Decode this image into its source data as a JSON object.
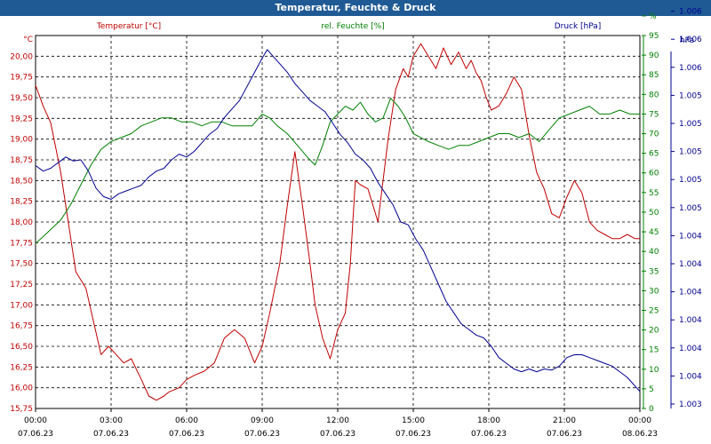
{
  "window": {
    "title": "Temperatur, Feuchte & Druck"
  },
  "chart_data": {
    "type": "line",
    "title": "Temperatur, Feuchte & Druck",
    "grid": true,
    "x_ticks": [
      {
        "time": "00:00",
        "date": "07.06.23"
      },
      {
        "time": "03:00",
        "date": "07.06.23"
      },
      {
        "time": "06:00",
        "date": "07.06.23"
      },
      {
        "time": "09:00",
        "date": "07.06.23"
      },
      {
        "time": "12:00",
        "date": "07.06.23"
      },
      {
        "time": "15:00",
        "date": "07.06.23"
      },
      {
        "time": "18:00",
        "date": "07.06.23"
      },
      {
        "time": "21:00",
        "date": "07.06.23"
      },
      {
        "time": "00:00",
        "date": "08.06.23"
      }
    ],
    "axes": {
      "temperature": {
        "unit": "°C",
        "label": "Temperatur [°C]",
        "color": "#c00000",
        "range": [
          15.75,
          20.25
        ],
        "ticks": [
          "15,75",
          "16,00",
          "16,25",
          "16,50",
          "16,75",
          "17,00",
          "17,25",
          "17,50",
          "17,75",
          "18,00",
          "18,25",
          "18,50",
          "18,75",
          "19,00",
          "19,25",
          "19,50",
          "19,75",
          "20,00"
        ]
      },
      "humidity": {
        "unit": "%",
        "label": "rel. Feuchte [%]",
        "color": "#008000",
        "range": [
          0,
          95
        ],
        "ticks": [
          "0",
          "5",
          "10",
          "15",
          "20",
          "25",
          "30",
          "35",
          "40",
          "45",
          "50",
          "55",
          "60",
          "65",
          "70",
          "75",
          "80",
          "85",
          "90",
          "95",
          "%"
        ]
      },
      "pressure": {
        "unit": "hPa",
        "label": "Druck [hPa]",
        "color": "#000090",
        "ticks": [
          "1.003",
          "1.004",
          "1.004",
          "1.004",
          "1.004",
          "1.004",
          "1.004",
          "1.005",
          "1.005",
          "1.005",
          "1.005",
          "1.005",
          "1.006",
          "1.006",
          "1.006"
        ]
      }
    },
    "series": [
      {
        "name": "Temperatur [°C]",
        "axis": "temperature",
        "color": "#c00000",
        "x": [
          0,
          0.3,
          0.6,
          1.0,
          1.3,
          1.6,
          2.0,
          2.3,
          2.6,
          2.9,
          3.2,
          3.5,
          3.8,
          4.2,
          4.5,
          4.8,
          5.1,
          5.3,
          5.7,
          6.0,
          6.3,
          6.7,
          7.1,
          7.5,
          7.9,
          8.3,
          8.7,
          9.0,
          9.3,
          9.7,
          10.0,
          10.3,
          10.6,
          10.9,
          11.1,
          11.4,
          11.7,
          12.0,
          12.3,
          12.5,
          12.7,
          12.9,
          13.2,
          13.4,
          13.6,
          14.0,
          14.3,
          14.6,
          14.8,
          15.0,
          15.3,
          15.6,
          15.9,
          16.2,
          16.5,
          16.8,
          17.1,
          17.3,
          17.5,
          17.7,
          17.9,
          18.1,
          18.4,
          18.7,
          19.0,
          19.3,
          19.6,
          19.9,
          20.2,
          20.5,
          20.8,
          21.1,
          21.4,
          21.7,
          22.0,
          22.3,
          22.6,
          22.9,
          23.2,
          23.5,
          23.8,
          24.0
        ],
        "values": [
          19.65,
          19.4,
          19.2,
          18.6,
          18.0,
          17.4,
          17.2,
          16.8,
          16.4,
          16.5,
          16.4,
          16.3,
          16.35,
          16.1,
          15.9,
          15.85,
          15.9,
          15.95,
          16.0,
          16.1,
          16.15,
          16.2,
          16.3,
          16.6,
          16.7,
          16.6,
          16.3,
          16.5,
          16.9,
          17.5,
          18.2,
          18.85,
          18.2,
          17.5,
          17.0,
          16.6,
          16.35,
          16.7,
          16.9,
          17.5,
          18.5,
          18.45,
          18.4,
          18.2,
          18.0,
          19.0,
          19.6,
          19.85,
          19.75,
          20.0,
          20.15,
          20.0,
          19.85,
          20.1,
          19.9,
          20.05,
          19.85,
          19.95,
          19.8,
          19.7,
          19.5,
          19.35,
          19.4,
          19.55,
          19.75,
          19.6,
          19.05,
          18.6,
          18.4,
          18.1,
          18.05,
          18.3,
          18.5,
          18.35,
          18.0,
          17.9,
          17.85,
          17.8,
          17.8,
          17.85,
          17.8,
          17.8
        ]
      },
      {
        "name": "rel. Feuchte [%]",
        "axis": "humidity",
        "color": "#008000",
        "x": [
          0,
          0.5,
          1.0,
          1.4,
          1.8,
          2.2,
          2.6,
          3.0,
          3.4,
          3.8,
          4.2,
          4.6,
          5.0,
          5.4,
          5.8,
          6.2,
          6.6,
          7.0,
          7.4,
          7.8,
          8.2,
          8.6,
          9.0,
          9.3,
          9.6,
          10.0,
          10.4,
          10.8,
          11.1,
          11.4,
          11.7,
          12.0,
          12.3,
          12.6,
          12.9,
          13.2,
          13.5,
          13.8,
          14.1,
          14.4,
          14.7,
          15.0,
          15.3,
          15.6,
          16.0,
          16.4,
          16.8,
          17.2,
          17.6,
          18.0,
          18.4,
          18.8,
          19.2,
          19.6,
          20.0,
          20.4,
          20.8,
          21.2,
          21.6,
          22.0,
          22.4,
          22.8,
          23.2,
          23.6,
          24.0
        ],
        "values": [
          42,
          45,
          48,
          52,
          57,
          62,
          66,
          68,
          69,
          70,
          72,
          73,
          74,
          74,
          73,
          73,
          72,
          73,
          73,
          72,
          72,
          72,
          75,
          74,
          72,
          70,
          67,
          64,
          62,
          67,
          73,
          75,
          77,
          76,
          78,
          75,
          73,
          74,
          79,
          77,
          74,
          70,
          69,
          68,
          67,
          66,
          67,
          67,
          68,
          69,
          70,
          70,
          69,
          70,
          68,
          71,
          74,
          75,
          76,
          77,
          75,
          75,
          76,
          75,
          75
        ]
      },
      {
        "name": "Druck [hPa]",
        "axis": "pressure",
        "color": "#000090",
        "x": [
          0,
          0.3,
          0.6,
          0.9,
          1.2,
          1.5,
          1.8,
          2.1,
          2.4,
          2.7,
          3.0,
          3.3,
          3.6,
          3.9,
          4.2,
          4.5,
          4.8,
          5.1,
          5.4,
          5.7,
          6.0,
          6.3,
          6.6,
          6.9,
          7.2,
          7.5,
          7.8,
          8.1,
          8.4,
          8.7,
          9.0,
          9.2,
          9.4,
          9.7,
          10.0,
          10.3,
          10.6,
          10.9,
          11.2,
          11.5,
          11.8,
          12.1,
          12.4,
          12.7,
          13.0,
          13.3,
          13.6,
          13.9,
          14.2,
          14.5,
          14.8,
          15.1,
          15.4,
          15.7,
          16.0,
          16.3,
          16.6,
          16.9,
          17.2,
          17.5,
          17.8,
          18.1,
          18.4,
          18.7,
          19.0,
          19.3,
          19.6,
          19.9,
          20.2,
          20.5,
          20.8,
          21.1,
          21.4,
          21.7,
          22.0,
          22.3,
          22.6,
          22.9,
          23.2,
          23.5,
          23.8,
          24.0
        ],
        "values": [
          1004.9,
          1004.8,
          1004.85,
          1004.95,
          1005.05,
          1004.98,
          1005.0,
          1004.8,
          1004.5,
          1004.35,
          1004.3,
          1004.4,
          1004.45,
          1004.5,
          1004.55,
          1004.7,
          1004.8,
          1004.85,
          1005.0,
          1005.1,
          1005.05,
          1005.15,
          1005.3,
          1005.45,
          1005.55,
          1005.75,
          1005.9,
          1006.05,
          1006.3,
          1006.55,
          1006.8,
          1006.95,
          1006.85,
          1006.7,
          1006.55,
          1006.35,
          1006.2,
          1006.05,
          1005.95,
          1005.85,
          1005.65,
          1005.45,
          1005.3,
          1005.1,
          1005.0,
          1004.85,
          1004.6,
          1004.4,
          1004.2,
          1003.9,
          1003.85,
          1003.6,
          1003.4,
          1003.1,
          1002.8,
          1002.5,
          1002.3,
          1002.1,
          1002.0,
          1001.9,
          1001.85,
          1001.7,
          1001.5,
          1001.4,
          1001.3,
          1001.25,
          1001.3,
          1001.25,
          1001.3,
          1001.28,
          1001.35,
          1001.5,
          1001.55,
          1001.55,
          1001.5,
          1001.45,
          1001.4,
          1001.35,
          1001.25,
          1001.15,
          1001.0,
          1000.9
        ]
      }
    ]
  }
}
